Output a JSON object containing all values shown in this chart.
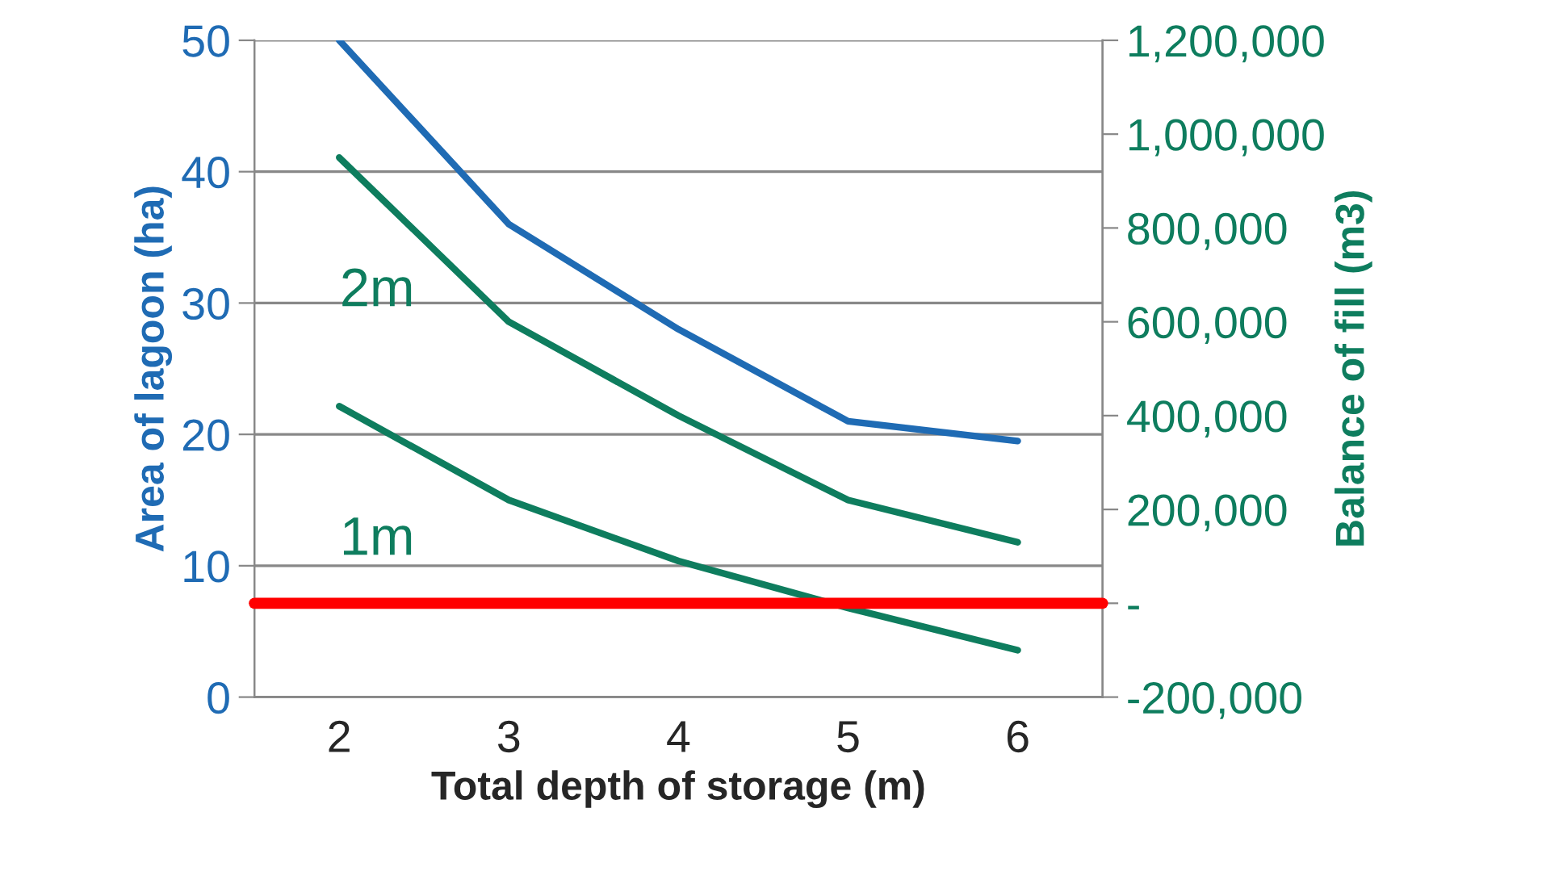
{
  "chart_data": {
    "type": "line",
    "xlabel": "Total depth of storage (m)",
    "ylabel": "Area of lagoon (ha)",
    "y2label": "Balance of fill (m3)",
    "categories": [
      "2",
      "3",
      "4",
      "5",
      "6"
    ],
    "series": [
      {
        "color": "#1f6bb4",
        "values": [
          50,
          36,
          28,
          21,
          19.5
        ]
      },
      {
        "name": "2m",
        "color": "#0e7d5e",
        "axis": "y2",
        "values": [
          950000,
          600000,
          400000,
          220000,
          130000
        ]
      },
      {
        "name": "1m",
        "color": "#0e7d5e",
        "axis": "y2",
        "values": [
          420000,
          220000,
          90000,
          -10000,
          -100000
        ]
      }
    ],
    "ylim": [
      0,
      50
    ],
    "yticks": [
      0,
      10,
      20,
      30,
      40,
      50
    ],
    "y2lim": [
      -200000,
      1200000
    ],
    "y2ticks": [
      {
        "value": -200000,
        "label": "-200,000"
      },
      {
        "value": 0,
        "label": "-"
      },
      {
        "value": 200000,
        "label": "200,000"
      },
      {
        "value": 400000,
        "label": "400,000"
      },
      {
        "value": 600000,
        "label": "600,000"
      },
      {
        "value": 800000,
        "label": "800,000"
      },
      {
        "value": 1000000,
        "label": "1,000,000"
      },
      {
        "value": 1200000,
        "label": "1,200,000"
      }
    ],
    "ref_lines": [
      {
        "axis": "y2",
        "value": 0,
        "color": "#ff0000"
      }
    ],
    "grid": "y",
    "legend": false
  }
}
